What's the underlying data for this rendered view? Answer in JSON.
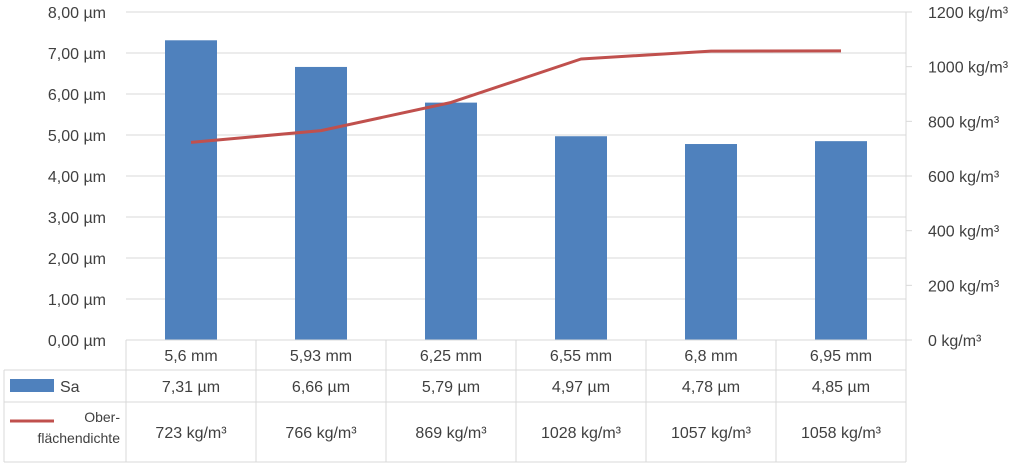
{
  "chart_data": {
    "type": "bar+line",
    "title": "",
    "categories": [
      "5,6 mm",
      "5,93 mm",
      "6,25 mm",
      "6,55 mm",
      "6,8 mm",
      "6,95 mm"
    ],
    "series": [
      {
        "name": "Sa",
        "type": "bar",
        "axis": "left",
        "color": "#4F81BD",
        "values": [
          7.31,
          6.66,
          5.79,
          4.97,
          4.78,
          4.85
        ],
        "labels": [
          "7,31 µm",
          "6,66 µm",
          "5,79 µm",
          "4,97 µm",
          "4,78 µm",
          "4,85 µm"
        ]
      },
      {
        "name_lines": [
          "Ober-",
          "flächendichte"
        ],
        "type": "line",
        "axis": "right",
        "color": "#C0504D",
        "values": [
          723,
          766,
          869,
          1028,
          1057,
          1058
        ],
        "labels": [
          "723 kg/m³",
          "766 kg/m³",
          "869 kg/m³",
          "1028 kg/m³",
          "1057 kg/m³",
          "1058 kg/m³"
        ]
      }
    ],
    "y_left": {
      "range": [
        0,
        8
      ],
      "ticks": [
        0,
        1,
        2,
        3,
        4,
        5,
        6,
        7,
        8
      ],
      "tick_labels": [
        "0,00 µm",
        "1,00 µm",
        "2,00 µm",
        "3,00 µm",
        "4,00 µm",
        "5,00 µm",
        "6,00 µm",
        "7,00 µm",
        "8,00 µm"
      ]
    },
    "y_right": {
      "range": [
        0,
        1200
      ],
      "ticks": [
        0,
        200,
        400,
        600,
        800,
        1000,
        1200
      ],
      "tick_labels": [
        "0 kg/m³",
        "200 kg/m³",
        "400 kg/m³",
        "600 kg/m³",
        "800 kg/m³",
        "1000 kg/m³",
        "1200 kg/m³"
      ]
    },
    "grid": true,
    "data_table": true,
    "colors": {
      "bar": "#4F81BD",
      "line": "#C0504D",
      "grid": "#D9D9D9",
      "text": "#404040"
    }
  }
}
